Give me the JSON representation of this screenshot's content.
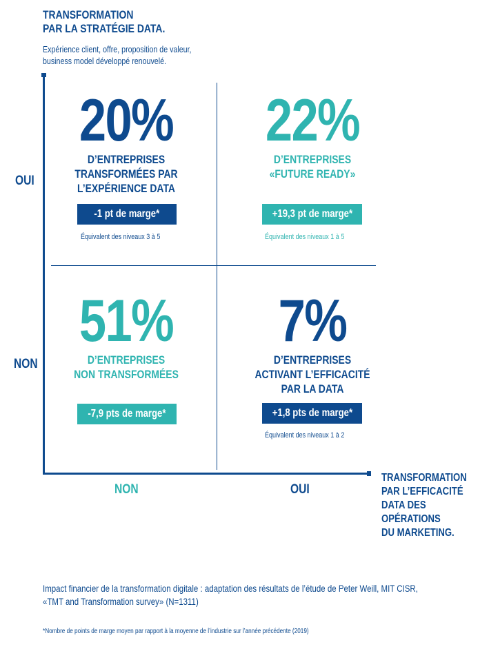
{
  "y_axis": {
    "title": "TRANSFORMATION\nPAR LA STRATÉGIE DATA.",
    "subtitle": "Expérience client, offre, proposition de valeur,\nbusiness model développé renouvelé.",
    "oui": "OUI",
    "non": "NON"
  },
  "x_axis": {
    "title": "TRANSFORMATION\nPAR L’EFFICACITÉ\nDATA DES\nOPÉRATIONS\nDU MARKETING.",
    "non": "NON",
    "oui": "OUI"
  },
  "quadrants": {
    "top_left": {
      "percent": "20%",
      "description": "D’ENTREPRISES\nTRANSFORMÉES PAR\nL’EXPÉRIENCE DATA",
      "badge": "-1 pt de marge*",
      "equivalent": "Équivalent des niveaux 3 à 5"
    },
    "top_right": {
      "percent": "22%",
      "description": "D’ENTREPRISES\n«FUTURE READY»",
      "badge": "+19,3 pt de marge*",
      "equivalent": "Équivalent des niveaux 1 à 5"
    },
    "bottom_left": {
      "percent": "51%",
      "description": "D’ENTREPRISES\nNON TRANSFORMÉES",
      "badge": "-7,9 pts de marge*"
    },
    "bottom_right": {
      "percent": "7%",
      "description": "D’ENTREPRISES\nACTIVANT L’EFFICACITÉ\nPAR LA DATA",
      "badge": "+1,8 pts de marge*",
      "equivalent": "Équivalent des niveaux 1 à 2"
    }
  },
  "source": "Impact financier de la transformation digitale : adaptation des résultats de l’étude de Peter Weill, MIT CISR,\n«TMT and Transformation survey» (N=1311)",
  "footnote": "*Nombre de points de marge moyen par rapport à la moyenne de l’industrie sur l’année précédente (2019)",
  "colors": {
    "dark_blue": "#0e4a8e",
    "teal": "#2fb4b0"
  }
}
